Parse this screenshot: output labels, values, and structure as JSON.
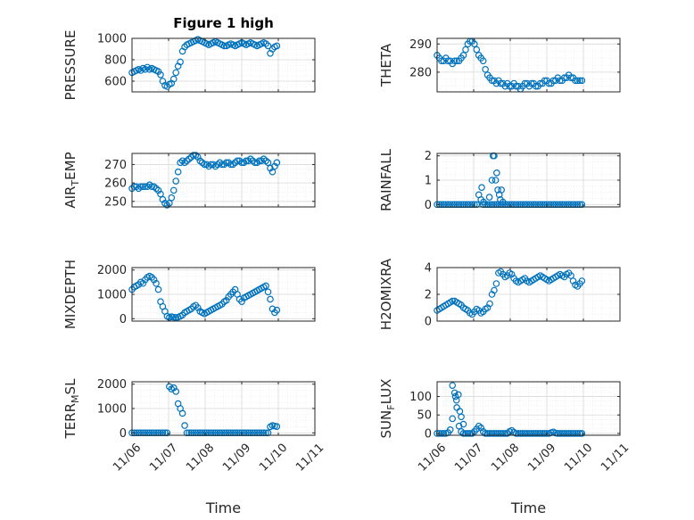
{
  "figure": {
    "title": "Figure 1 high",
    "xlabel_left": "Time",
    "xlabel_right": "Time",
    "colors": {
      "marker": "#0072bd",
      "axis": "#262626",
      "grid": "#d9d9d9",
      "background": "#ffffff"
    }
  },
  "chart_data": [
    {
      "type": "scatter",
      "name": "pressure",
      "title": "Figure 1 high",
      "ylabel": "PRESSURE",
      "xlabel": "",
      "xlim": [
        0,
        5
      ],
      "ylim": [
        500,
        1000
      ],
      "yticks": [
        600,
        800,
        1000
      ],
      "xticks": [
        0,
        1,
        2,
        3,
        4,
        5
      ],
      "xticklabels": [],
      "grid": true,
      "x": [
        0.0,
        0.06,
        0.12,
        0.18,
        0.24,
        0.3,
        0.36,
        0.42,
        0.48,
        0.54,
        0.6,
        0.66,
        0.72,
        0.78,
        0.84,
        0.9,
        0.96,
        1.02,
        1.08,
        1.14,
        1.2,
        1.26,
        1.32,
        1.38,
        1.44,
        1.5,
        1.56,
        1.62,
        1.68,
        1.74,
        1.8,
        1.86,
        1.92,
        1.98,
        2.04,
        2.1,
        2.16,
        2.22,
        2.28,
        2.34,
        2.4,
        2.46,
        2.52,
        2.58,
        2.64,
        2.7,
        2.76,
        2.82,
        2.88,
        2.94,
        3.0,
        3.06,
        3.12,
        3.18,
        3.24,
        3.3,
        3.36,
        3.42,
        3.48,
        3.54,
        3.6,
        3.66,
        3.72,
        3.78,
        3.84,
        3.9,
        3.96
      ],
      "y": [
        680,
        690,
        700,
        710,
        700,
        720,
        710,
        730,
        710,
        720,
        710,
        700,
        690,
        660,
        600,
        560,
        550,
        570,
        580,
        620,
        680,
        740,
        780,
        880,
        920,
        940,
        950,
        960,
        970,
        980,
        990,
        980,
        970,
        960,
        950,
        940,
        950,
        960,
        970,
        960,
        950,
        940,
        930,
        930,
        940,
        950,
        940,
        930,
        940,
        950,
        960,
        950,
        940,
        950,
        960,
        950,
        940,
        930,
        940,
        950,
        960,
        950,
        930,
        860,
        900,
        920,
        930
      ]
    },
    {
      "type": "scatter",
      "name": "theta",
      "ylabel": "THETA",
      "xlabel": "",
      "xlim": [
        0,
        5
      ],
      "ylim": [
        273,
        292
      ],
      "yticks": [
        280,
        290
      ],
      "xticks": [
        0,
        1,
        2,
        3,
        4,
        5
      ],
      "xticklabels": [],
      "grid": true,
      "x": [
        0.0,
        0.06,
        0.12,
        0.18,
        0.24,
        0.3,
        0.36,
        0.42,
        0.48,
        0.54,
        0.6,
        0.66,
        0.72,
        0.78,
        0.84,
        0.9,
        0.96,
        1.02,
        1.08,
        1.14,
        1.2,
        1.26,
        1.32,
        1.38,
        1.44,
        1.5,
        1.56,
        1.62,
        1.68,
        1.74,
        1.8,
        1.86,
        1.92,
        1.98,
        2.04,
        2.1,
        2.16,
        2.22,
        2.28,
        2.34,
        2.4,
        2.46,
        2.52,
        2.58,
        2.64,
        2.7,
        2.76,
        2.82,
        2.88,
        2.94,
        3.0,
        3.06,
        3.12,
        3.18,
        3.24,
        3.3,
        3.36,
        3.42,
        3.48,
        3.54,
        3.6,
        3.66,
        3.72,
        3.78,
        3.84,
        3.9,
        3.96
      ],
      "y": [
        286,
        285,
        284,
        284,
        285,
        284,
        284,
        283,
        284,
        284,
        284,
        285,
        286,
        288,
        290,
        291,
        291,
        290,
        288,
        286,
        285,
        284,
        281,
        279,
        278,
        277,
        277,
        276,
        277,
        276,
        276,
        275,
        276,
        275,
        275,
        276,
        275,
        275,
        274,
        275,
        276,
        276,
        275,
        276,
        276,
        275,
        275,
        276,
        276,
        277,
        277,
        276,
        276,
        277,
        277,
        278,
        277,
        277,
        278,
        278,
        279,
        278,
        278,
        277,
        277,
        277,
        277
      ]
    },
    {
      "type": "scatter",
      "name": "air_temp",
      "ylabel": "AIR_TEMP",
      "ylabel_main": "AIR",
      "ylabel_sub": "T",
      "ylabel_rest": "EMP",
      "xlabel": "",
      "xlim": [
        0,
        5
      ],
      "ylim": [
        247,
        276
      ],
      "yticks": [
        250,
        260,
        270
      ],
      "xticks": [
        0,
        1,
        2,
        3,
        4,
        5
      ],
      "xticklabels": [],
      "grid": true,
      "x": [
        0.0,
        0.06,
        0.12,
        0.18,
        0.24,
        0.3,
        0.36,
        0.42,
        0.48,
        0.54,
        0.6,
        0.66,
        0.72,
        0.78,
        0.84,
        0.9,
        0.96,
        1.02,
        1.08,
        1.14,
        1.2,
        1.26,
        1.32,
        1.38,
        1.44,
        1.5,
        1.56,
        1.62,
        1.68,
        1.74,
        1.8,
        1.86,
        1.92,
        1.98,
        2.04,
        2.1,
        2.16,
        2.22,
        2.28,
        2.34,
        2.4,
        2.46,
        2.52,
        2.58,
        2.64,
        2.7,
        2.76,
        2.82,
        2.88,
        2.94,
        3.0,
        3.06,
        3.12,
        3.18,
        3.24,
        3.3,
        3.36,
        3.42,
        3.48,
        3.54,
        3.6,
        3.66,
        3.72,
        3.78,
        3.84,
        3.9,
        3.96
      ],
      "y": [
        257,
        258,
        258,
        257,
        258,
        258,
        258,
        258,
        259,
        258,
        258,
        257,
        256,
        254,
        251,
        249,
        248,
        249,
        252,
        256,
        261,
        266,
        271,
        272,
        271,
        272,
        273,
        274,
        275,
        275,
        274,
        272,
        271,
        270,
        270,
        269,
        270,
        270,
        269,
        270,
        271,
        270,
        270,
        271,
        271,
        270,
        270,
        271,
        272,
        272,
        271,
        271,
        272,
        272,
        273,
        272,
        271,
        271,
        272,
        272,
        273,
        272,
        271,
        268,
        266,
        269,
        271
      ]
    },
    {
      "type": "scatter",
      "name": "rainfall",
      "ylabel": "RAINFALL",
      "xlabel": "",
      "xlim": [
        0,
        5
      ],
      "ylim": [
        -0.1,
        2.1
      ],
      "yticks": [
        0,
        1,
        2
      ],
      "xticks": [
        0,
        1,
        2,
        3,
        4,
        5
      ],
      "xticklabels": [],
      "grid": true,
      "x": [
        0.0,
        0.06,
        0.12,
        0.18,
        0.24,
        0.3,
        0.36,
        0.42,
        0.48,
        0.54,
        0.6,
        0.66,
        0.72,
        0.78,
        0.84,
        0.9,
        0.96,
        1.02,
        1.08,
        1.14,
        1.2,
        1.26,
        1.32,
        1.38,
        1.44,
        1.5,
        1.56,
        1.62,
        1.68,
        1.74,
        1.8,
        1.86,
        1.92,
        1.98,
        2.04,
        2.1,
        2.16,
        2.22,
        2.28,
        2.34,
        2.4,
        2.46,
        2.52,
        2.58,
        2.64,
        2.7,
        2.76,
        2.82,
        2.88,
        2.94,
        3.0,
        3.06,
        3.12,
        3.18,
        3.24,
        3.3,
        3.36,
        3.42,
        3.48,
        3.54,
        3.6,
        3.66,
        3.72,
        3.78,
        3.84,
        3.9,
        3.96,
        1.22,
        1.27,
        1.43,
        1.5,
        1.53,
        1.56,
        1.6,
        1.63,
        1.66,
        1.7,
        1.73,
        1.76,
        1.8
      ],
      "y": [
        0,
        0,
        0,
        0,
        0,
        0,
        0,
        0,
        0,
        0,
        0,
        0,
        0,
        0,
        0,
        0,
        0,
        0,
        0,
        0.4,
        0.2,
        0,
        0,
        0,
        0,
        0,
        0,
        0,
        0,
        0,
        0,
        0,
        0,
        0,
        0,
        0,
        0,
        0,
        0,
        0,
        0,
        0,
        0,
        0,
        0,
        0,
        0,
        0,
        0,
        0,
        0,
        0,
        0,
        0,
        0,
        0,
        0,
        0,
        0,
        0,
        0,
        0,
        0,
        0,
        0,
        0,
        0,
        0.7,
        0.1,
        0.3,
        1.0,
        2.0,
        2.0,
        1.0,
        1.3,
        0.6,
        0.4,
        0.2,
        0.6,
        0.1
      ]
    },
    {
      "type": "scatter",
      "name": "mixdepth",
      "ylabel": "MIXDEPTH",
      "xlabel": "",
      "xlim": [
        0,
        5
      ],
      "ylim": [
        -100,
        2100
      ],
      "yticks": [
        0,
        1000,
        2000
      ],
      "xticks": [
        0,
        1,
        2,
        3,
        4,
        5
      ],
      "xticklabels": [],
      "grid": true,
      "x": [
        0.0,
        0.06,
        0.12,
        0.18,
        0.24,
        0.3,
        0.36,
        0.42,
        0.48,
        0.54,
        0.6,
        0.66,
        0.72,
        0.78,
        0.84,
        0.9,
        0.96,
        1.02,
        1.08,
        1.14,
        1.2,
        1.26,
        1.32,
        1.38,
        1.44,
        1.5,
        1.56,
        1.62,
        1.68,
        1.74,
        1.8,
        1.86,
        1.92,
        1.98,
        2.04,
        2.1,
        2.16,
        2.22,
        2.28,
        2.34,
        2.4,
        2.46,
        2.52,
        2.58,
        2.64,
        2.7,
        2.76,
        2.82,
        2.88,
        2.94,
        3.0,
        3.06,
        3.12,
        3.18,
        3.24,
        3.3,
        3.36,
        3.42,
        3.48,
        3.54,
        3.6,
        3.66,
        3.72,
        3.78,
        3.84,
        3.9,
        3.96
      ],
      "y": [
        1200,
        1300,
        1350,
        1400,
        1500,
        1450,
        1600,
        1700,
        1750,
        1700,
        1600,
        1450,
        1200,
        700,
        500,
        300,
        100,
        50,
        80,
        60,
        50,
        60,
        100,
        150,
        250,
        300,
        350,
        400,
        500,
        550,
        450,
        300,
        250,
        200,
        250,
        300,
        350,
        400,
        450,
        500,
        550,
        600,
        700,
        750,
        900,
        1000,
        1100,
        1200,
        1000,
        800,
        700,
        850,
        900,
        950,
        1000,
        1050,
        1100,
        1150,
        1200,
        1250,
        1300,
        1350,
        1100,
        800,
        400,
        250,
        350
      ]
    },
    {
      "type": "scatter",
      "name": "h2omixra",
      "ylabel": "H2OMIXRA",
      "xlabel": "",
      "xlim": [
        0,
        5
      ],
      "ylim": [
        0,
        4
      ],
      "yticks": [
        0,
        2,
        4
      ],
      "xticks": [
        0,
        1,
        2,
        3,
        4,
        5
      ],
      "xticklabels": [],
      "grid": true,
      "x": [
        0.0,
        0.06,
        0.12,
        0.18,
        0.24,
        0.3,
        0.36,
        0.42,
        0.48,
        0.54,
        0.6,
        0.66,
        0.72,
        0.78,
        0.84,
        0.9,
        0.96,
        1.02,
        1.08,
        1.14,
        1.2,
        1.26,
        1.32,
        1.38,
        1.44,
        1.5,
        1.56,
        1.62,
        1.68,
        1.74,
        1.8,
        1.86,
        1.92,
        1.98,
        2.04,
        2.1,
        2.16,
        2.22,
        2.28,
        2.34,
        2.4,
        2.46,
        2.52,
        2.58,
        2.64,
        2.7,
        2.76,
        2.82,
        2.88,
        2.94,
        3.0,
        3.06,
        3.12,
        3.18,
        3.24,
        3.3,
        3.36,
        3.42,
        3.48,
        3.54,
        3.6,
        3.66,
        3.72,
        3.78,
        3.84,
        3.9,
        3.96
      ],
      "y": [
        0.8,
        0.9,
        1.0,
        1.1,
        1.2,
        1.3,
        1.4,
        1.5,
        1.5,
        1.4,
        1.3,
        1.2,
        1.0,
        0.9,
        0.8,
        0.6,
        0.5,
        0.7,
        0.9,
        0.8,
        0.6,
        0.7,
        0.9,
        1.0,
        1.3,
        2.0,
        2.3,
        2.8,
        3.6,
        3.7,
        3.5,
        3.3,
        3.4,
        3.6,
        3.5,
        3.2,
        3.0,
        2.9,
        3.0,
        3.1,
        3.2,
        3.0,
        2.9,
        3.0,
        3.1,
        3.2,
        3.3,
        3.4,
        3.3,
        3.2,
        3.1,
        3.0,
        3.1,
        3.2,
        3.3,
        3.4,
        3.5,
        3.4,
        3.3,
        3.5,
        3.6,
        3.4,
        3.0,
        2.7,
        2.6,
        2.8,
        3.0
      ]
    },
    {
      "type": "scatter",
      "name": "terr_msl",
      "ylabel": "TERR_MSL",
      "ylabel_main": "TERR",
      "ylabel_sub": "M",
      "ylabel_rest": "SL",
      "xlabel": "Time",
      "xlim": [
        0,
        5
      ],
      "ylim": [
        -100,
        2100
      ],
      "yticks": [
        0,
        1000,
        2000
      ],
      "xticks": [
        0,
        1,
        2,
        3,
        4,
        5
      ],
      "xticklabels": [
        "11/06",
        "11/07",
        "11/08",
        "11/09",
        "11/10",
        "11/11"
      ],
      "grid": true,
      "x": [
        0.0,
        0.06,
        0.12,
        0.18,
        0.24,
        0.3,
        0.36,
        0.42,
        0.48,
        0.54,
        0.6,
        0.66,
        0.72,
        0.78,
        0.84,
        0.9,
        0.96,
        1.02,
        1.08,
        1.14,
        1.2,
        1.26,
        1.32,
        1.38,
        1.44,
        1.5,
        1.56,
        1.62,
        1.68,
        1.74,
        1.8,
        1.86,
        1.92,
        1.98,
        2.04,
        2.1,
        2.16,
        2.22,
        2.28,
        2.34,
        2.4,
        2.46,
        2.52,
        2.58,
        2.64,
        2.7,
        2.76,
        2.82,
        2.88,
        2.94,
        3.0,
        3.06,
        3.12,
        3.18,
        3.24,
        3.3,
        3.36,
        3.42,
        3.48,
        3.54,
        3.6,
        3.66,
        3.72,
        3.78,
        3.84,
        3.9,
        3.96
      ],
      "y": [
        0,
        0,
        0,
        0,
        0,
        0,
        0,
        0,
        0,
        0,
        0,
        0,
        0,
        0,
        0,
        0,
        0,
        1900,
        1800,
        1850,
        1700,
        1200,
        1000,
        800,
        300,
        0,
        0,
        0,
        0,
        0,
        0,
        0,
        0,
        0,
        0,
        0,
        0,
        0,
        0,
        0,
        0,
        0,
        0,
        0,
        0,
        0,
        0,
        0,
        0,
        0,
        0,
        0,
        0,
        0,
        0,
        0,
        0,
        0,
        0,
        0,
        0,
        0,
        0,
        250,
        300,
        280,
        260
      ]
    },
    {
      "type": "scatter",
      "name": "sun_flux",
      "ylabel": "SUN_FLUX",
      "ylabel_main": "SUN",
      "ylabel_sub": "F",
      "ylabel_rest": "LUX",
      "xlabel": "Time",
      "xlim": [
        0,
        5
      ],
      "ylim": [
        -5,
        140
      ],
      "yticks": [
        0,
        50,
        100
      ],
      "xticks": [
        0,
        1,
        2,
        3,
        4,
        5
      ],
      "xticklabels": [
        "11/06",
        "11/07",
        "11/08",
        "11/09",
        "11/10",
        "11/11"
      ],
      "grid": true,
      "x": [
        0.0,
        0.06,
        0.12,
        0.18,
        0.24,
        0.3,
        0.36,
        0.42,
        0.48,
        0.54,
        0.6,
        0.66,
        0.72,
        0.78,
        0.84,
        0.9,
        0.96,
        1.02,
        1.08,
        1.14,
        1.2,
        1.26,
        1.32,
        1.38,
        1.44,
        1.5,
        1.56,
        1.62,
        1.68,
        1.74,
        1.8,
        1.86,
        1.92,
        1.98,
        2.04,
        2.1,
        2.16,
        2.22,
        2.28,
        2.34,
        2.4,
        2.46,
        2.52,
        2.58,
        2.64,
        2.7,
        2.76,
        2.82,
        2.88,
        2.94,
        3.0,
        3.06,
        3.12,
        3.18,
        3.24,
        3.3,
        3.36,
        3.42,
        3.48,
        3.54,
        3.6,
        3.66,
        3.72,
        3.78,
        3.84,
        3.9,
        3.96,
        0.42,
        0.5,
        0.53,
        0.58,
        0.62,
        0.66,
        0.72
      ],
      "y": [
        0,
        0,
        0,
        0,
        0,
        2,
        10,
        40,
        110,
        70,
        20,
        5,
        0,
        0,
        0,
        0,
        0,
        5,
        12,
        20,
        15,
        5,
        0,
        0,
        0,
        0,
        0,
        0,
        0,
        0,
        0,
        0,
        0,
        5,
        8,
        3,
        0,
        0,
        0,
        0,
        0,
        0,
        0,
        0,
        0,
        0,
        0,
        0,
        0,
        0,
        0,
        0,
        2,
        4,
        1,
        0,
        0,
        0,
        0,
        0,
        0,
        0,
        0,
        0,
        0,
        0,
        0,
        130,
        100,
        90,
        105,
        60,
        45,
        25
      ]
    }
  ]
}
